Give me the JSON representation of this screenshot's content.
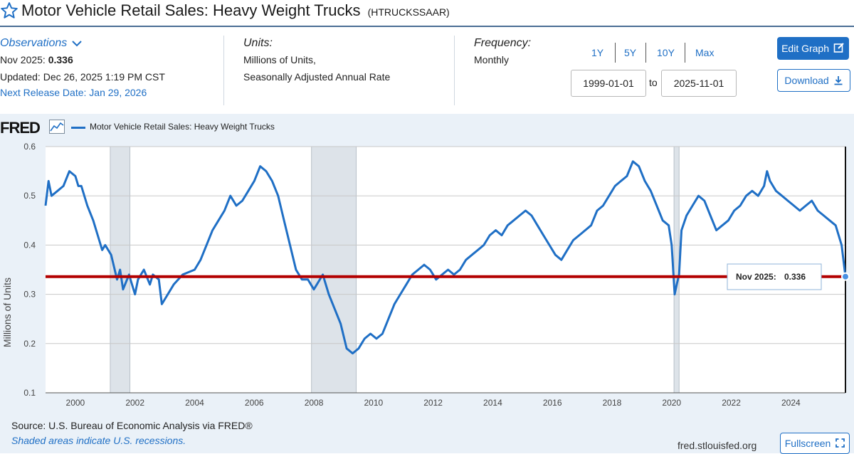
{
  "header": {
    "title": "Motor Vehicle Retail Sales: Heavy Weight Trucks",
    "code": "(HTRUCKSSAAR)"
  },
  "observations": {
    "label": "Observations",
    "latest_period": "Nov 2025:",
    "latest_value": "0.336",
    "updated": "Updated: Dec 26, 2025 1:19 PM CST",
    "next_release": "Next Release Date: Jan 29, 2026"
  },
  "units": {
    "heading": "Units:",
    "line1": "Millions of Units,",
    "line2": "Seasonally Adjusted Annual Rate"
  },
  "frequency": {
    "heading": "Frequency:",
    "value": "Monthly"
  },
  "range": {
    "buttons": [
      "1Y",
      "5Y",
      "10Y",
      "Max"
    ],
    "start": "1999-01-01",
    "to": "to",
    "end": "2025-11-01"
  },
  "actions": {
    "edit": "Edit Graph",
    "download": "Download"
  },
  "chart_panel": {
    "logo": "FRED",
    "source": "Source: U.S. Bureau of Economic Analysis via FRED®",
    "shaded_note": "Shaded areas indicate U.S. recessions.",
    "site": "fred.stlouisfed.org",
    "fullscreen": "Fullscreen"
  },
  "colors": {
    "series": "#1f6fc5",
    "reference_line": "#b30000",
    "recession": "#dde3e9",
    "accent": "#1f6fc5"
  },
  "chart_data": {
    "type": "line",
    "ylabel": "Millions of Units",
    "ylim": [
      0.1,
      0.6
    ],
    "yticks": [
      "0.1",
      "0.2",
      "0.3",
      "0.4",
      "0.5",
      "0.6"
    ],
    "xlim": [
      1999.0,
      2025.83
    ],
    "xticks": [
      "2000",
      "2002",
      "2004",
      "2006",
      "2008",
      "2010",
      "2012",
      "2014",
      "2016",
      "2018",
      "2020",
      "2022",
      "2024"
    ],
    "recessions": [
      [
        2001.17,
        2001.83
      ],
      [
        2007.92,
        2009.42
      ],
      [
        2020.08,
        2020.25
      ]
    ],
    "reference_value": 0.336,
    "tooltip": {
      "label": "Nov 2025:",
      "value": "0.336",
      "x": 2025.83
    },
    "series": [
      {
        "name": "Motor Vehicle Retail Sales: Heavy Weight Trucks",
        "x": [
          1999.0,
          1999.1,
          1999.2,
          1999.4,
          1999.6,
          1999.8,
          2000.0,
          2000.1,
          2000.2,
          2000.4,
          2000.6,
          2000.8,
          2000.9,
          2001.0,
          2001.2,
          2001.4,
          2001.5,
          2001.6,
          2001.8,
          2002.0,
          2002.1,
          2002.3,
          2002.5,
          2002.6,
          2002.8,
          2002.9,
          2003.0,
          2003.3,
          2003.6,
          2004.0,
          2004.2,
          2004.4,
          2004.6,
          2004.8,
          2005.0,
          2005.2,
          2005.4,
          2005.6,
          2005.8,
          2006.0,
          2006.2,
          2006.4,
          2006.6,
          2006.8,
          2007.0,
          2007.2,
          2007.4,
          2007.6,
          2007.8,
          2008.0,
          2008.1,
          2008.3,
          2008.5,
          2008.7,
          2008.9,
          2009.1,
          2009.3,
          2009.5,
          2009.7,
          2009.9,
          2010.1,
          2010.3,
          2010.5,
          2010.7,
          2010.9,
          2011.1,
          2011.3,
          2011.5,
          2011.7,
          2011.9,
          2012.1,
          2012.3,
          2012.5,
          2012.7,
          2012.9,
          2013.1,
          2013.3,
          2013.5,
          2013.7,
          2013.9,
          2014.1,
          2014.3,
          2014.5,
          2014.7,
          2014.9,
          2015.1,
          2015.3,
          2015.5,
          2015.7,
          2015.9,
          2016.1,
          2016.3,
          2016.5,
          2016.7,
          2016.9,
          2017.1,
          2017.3,
          2017.5,
          2017.7,
          2017.9,
          2018.1,
          2018.3,
          2018.5,
          2018.7,
          2018.9,
          2019.1,
          2019.3,
          2019.5,
          2019.7,
          2019.9,
          2020.0,
          2020.1,
          2020.17,
          2020.25,
          2020.33,
          2020.5,
          2020.7,
          2020.9,
          2021.1,
          2021.3,
          2021.5,
          2021.7,
          2021.9,
          2022.1,
          2022.3,
          2022.5,
          2022.7,
          2022.9,
          2023.1,
          2023.2,
          2023.3,
          2023.5,
          2023.7,
          2023.9,
          2024.1,
          2024.3,
          2024.5,
          2024.7,
          2024.9,
          2025.1,
          2025.3,
          2025.5,
          2025.7,
          2025.83
        ],
        "y": [
          0.48,
          0.53,
          0.5,
          0.51,
          0.52,
          0.55,
          0.54,
          0.52,
          0.52,
          0.48,
          0.45,
          0.41,
          0.39,
          0.4,
          0.38,
          0.33,
          0.35,
          0.31,
          0.34,
          0.3,
          0.33,
          0.35,
          0.32,
          0.34,
          0.33,
          0.28,
          0.29,
          0.32,
          0.34,
          0.35,
          0.37,
          0.4,
          0.43,
          0.45,
          0.47,
          0.5,
          0.48,
          0.49,
          0.51,
          0.53,
          0.56,
          0.55,
          0.53,
          0.5,
          0.45,
          0.4,
          0.35,
          0.33,
          0.33,
          0.31,
          0.32,
          0.34,
          0.3,
          0.27,
          0.24,
          0.19,
          0.18,
          0.19,
          0.21,
          0.22,
          0.21,
          0.22,
          0.25,
          0.28,
          0.3,
          0.32,
          0.34,
          0.35,
          0.36,
          0.35,
          0.33,
          0.34,
          0.35,
          0.34,
          0.35,
          0.37,
          0.38,
          0.39,
          0.4,
          0.42,
          0.43,
          0.42,
          0.44,
          0.45,
          0.46,
          0.47,
          0.46,
          0.44,
          0.42,
          0.4,
          0.38,
          0.37,
          0.39,
          0.41,
          0.42,
          0.43,
          0.44,
          0.47,
          0.48,
          0.5,
          0.52,
          0.53,
          0.54,
          0.57,
          0.56,
          0.53,
          0.51,
          0.48,
          0.45,
          0.44,
          0.4,
          0.3,
          0.32,
          0.34,
          0.43,
          0.46,
          0.48,
          0.5,
          0.49,
          0.46,
          0.43,
          0.44,
          0.45,
          0.47,
          0.48,
          0.5,
          0.51,
          0.5,
          0.52,
          0.55,
          0.53,
          0.51,
          0.5,
          0.49,
          0.48,
          0.47,
          0.48,
          0.49,
          0.47,
          0.46,
          0.45,
          0.44,
          0.4,
          0.336
        ]
      }
    ]
  }
}
